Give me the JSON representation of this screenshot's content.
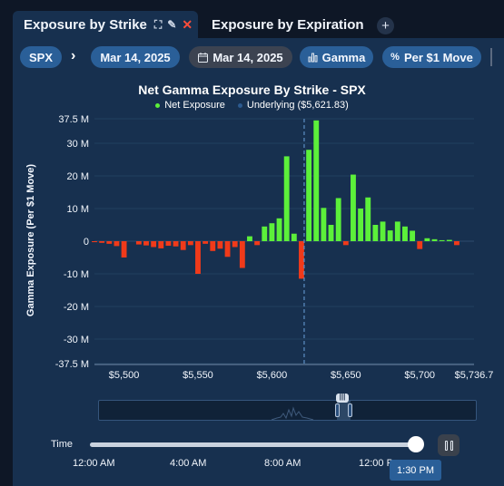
{
  "tabs": [
    {
      "label": "Exposure by Strike",
      "active": true
    },
    {
      "label": "Exposure by Expiration",
      "active": false
    }
  ],
  "add_tab_label": "+",
  "toolbar": {
    "symbol": "SPX",
    "expiration": "Mar 14, 2025",
    "date": "Mar 14, 2025",
    "greek": "Gamma",
    "unit": "Per $1 Move"
  },
  "colors": {
    "positive": "#5cf03a",
    "negative": "#f03a1a",
    "underlying": "#5d8fc6",
    "accent": "#2a5f98"
  },
  "chart_data": {
    "type": "bar",
    "title": "Net Gamma Exposure By Strike - SPX",
    "legend": [
      "Net Exposure",
      "Underlying ($5,621.83)"
    ],
    "ylabel": "Gamma Exposure (Per $1 Move)",
    "y_ticks": [
      "37.5 M",
      "30 M",
      "20 M",
      "10 M",
      "0",
      "-10 M",
      "-20 M",
      "-30 M",
      "-37.5 M"
    ],
    "x_ticks": [
      "$5,500",
      "$5,550",
      "$5,600",
      "$5,650",
      "$5,700",
      "$5,736.7"
    ],
    "ylim": [
      -37.5,
      37.5
    ],
    "xlim": [
      5480,
      5736.7
    ],
    "underlying": 5621.83,
    "grid": true,
    "series": [
      {
        "name": "Net Exposure",
        "x": [
          5480,
          5485,
          5490,
          5495,
          5500,
          5505,
          5510,
          5515,
          5520,
          5525,
          5530,
          5535,
          5540,
          5545,
          5550,
          5555,
          5560,
          5565,
          5570,
          5575,
          5580,
          5585,
          5590,
          5595,
          5600,
          5605,
          5610,
          5615,
          5620,
          5625,
          5630,
          5635,
          5640,
          5645,
          5650,
          5655,
          5660,
          5665,
          5670,
          5675,
          5680,
          5685,
          5690,
          5695,
          5700,
          5705,
          5710,
          5715,
          5720,
          5725
        ],
        "values": [
          -0.3,
          -0.5,
          -0.8,
          -1.5,
          -5.0,
          0,
          -1.0,
          -1.3,
          -1.8,
          -2.2,
          -1.4,
          -1.6,
          -2.7,
          -1.2,
          -10.0,
          -0.8,
          -3.0,
          -2.3,
          -4.8,
          -1.8,
          -8.2,
          1.5,
          -1.2,
          4.5,
          5.5,
          7.0,
          26.0,
          2.3,
          -11.5,
          28.0,
          37.0,
          10.2,
          5.0,
          13.2,
          -1.2,
          20.4,
          10.0,
          13.4,
          5.0,
          6.0,
          3.3,
          6.0,
          4.5,
          3.2,
          -2.4,
          0.9,
          0.6,
          0.3,
          0.4,
          -1.2
        ]
      }
    ]
  },
  "time_slider": {
    "label": "Time",
    "ticks": [
      "12:00 AM",
      "4:00 AM",
      "8:00 AM",
      "12:00 P"
    ],
    "current": "1:30 PM"
  }
}
